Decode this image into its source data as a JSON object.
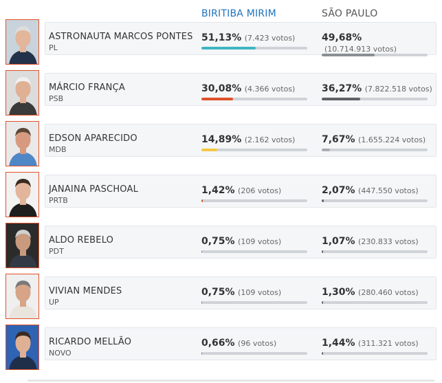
{
  "headers": {
    "city": "BIRITIBA MIRIM",
    "state": "SÃO PAULO"
  },
  "colors": {
    "city_header": "#1e73be",
    "state_header": "#555555",
    "photo_border": "#e0512a"
  },
  "candidates": [
    {
      "name": "ASTRONAUTA MARCOS PONTES",
      "party": "PL",
      "city": {
        "pct": "51,13%",
        "votes": "(7.423 votos)",
        "share": 51.13,
        "color": "#3fb6c0"
      },
      "state": {
        "pct": "49,68%",
        "votes": "(10.714.913 votos)",
        "share": 49.68,
        "color": "#8a8f94"
      },
      "photo": {
        "bg": "#c9d3db",
        "skin": "#e3b59a",
        "hair": "#dddddd",
        "suit": "#23324a"
      }
    },
    {
      "name": "MÁRCIO FRANÇA",
      "party": "PSB",
      "city": {
        "pct": "30,08%",
        "votes": "(4.366 votos)",
        "share": 30.08,
        "color": "#e0512a"
      },
      "state": {
        "pct": "36,27%",
        "votes": "(7.822.518 votos)",
        "share": 36.27,
        "color": "#5f6368"
      },
      "photo": {
        "bg": "#dcdcdc",
        "skin": "#e0b094",
        "hair": "#f0f0f0",
        "suit": "#3a3a3a"
      }
    },
    {
      "name": "EDSON APARECIDO",
      "party": "MDB",
      "city": {
        "pct": "14,89%",
        "votes": "(2.162 votos)",
        "share": 14.89,
        "color": "#f5c842"
      },
      "state": {
        "pct": "7,67%",
        "votes": "(1.655.224 votos)",
        "share": 7.67,
        "color": "#a9adb1"
      },
      "photo": {
        "bg": "#e9e9e9",
        "skin": "#d79a7e",
        "hair": "#5a4636",
        "suit": "#4f86c6"
      }
    },
    {
      "name": "JANAINA PASCHOAL",
      "party": "PRTB",
      "city": {
        "pct": "1,42%",
        "votes": "(206 votos)",
        "share": 1.42,
        "color": "#e0512a"
      },
      "state": {
        "pct": "2,07%",
        "votes": "(447.550 votos)",
        "share": 2.07,
        "color": "#5f6368"
      },
      "photo": {
        "bg": "#f2f2f2",
        "skin": "#e3b59a",
        "hair": "#3a2a20",
        "suit": "#1e1e1e"
      }
    },
    {
      "name": "ALDO REBELO",
      "party": "PDT",
      "city": {
        "pct": "0,75%",
        "votes": "(109 votos)",
        "share": 0.75,
        "color": "#8c6bd6"
      },
      "state": {
        "pct": "1,07%",
        "votes": "(230.833 votos)",
        "share": 1.07,
        "color": "#5f6368"
      },
      "photo": {
        "bg": "#2b2b2b",
        "skin": "#c99a7e",
        "hair": "#cfcfcf",
        "suit": "#333a45"
      }
    },
    {
      "name": "VIVIAN MENDES",
      "party": "UP",
      "city": {
        "pct": "0,75%",
        "votes": "(109 votos)",
        "share": 0.75,
        "color": "#e0512a"
      },
      "state": {
        "pct": "1,30%",
        "votes": "(280.460 votos)",
        "share": 1.3,
        "color": "#5f6368"
      },
      "photo": {
        "bg": "#efefef",
        "skin": "#d8a487",
        "hair": "#7a7a7a",
        "suit": "#e9e4dc"
      }
    },
    {
      "name": "RICARDO MELLÃO",
      "party": "NOVO",
      "city": {
        "pct": "0,66%",
        "votes": "(96 votos)",
        "share": 0.66,
        "color": "#3b7bd6"
      },
      "state": {
        "pct": "1,44%",
        "votes": "(311.321 votos)",
        "share": 1.44,
        "color": "#5f6368"
      },
      "photo": {
        "bg": "#2f63b3",
        "skin": "#e0b094",
        "hair": "#3a2a20",
        "suit": "#1f2f4a"
      }
    }
  ]
}
